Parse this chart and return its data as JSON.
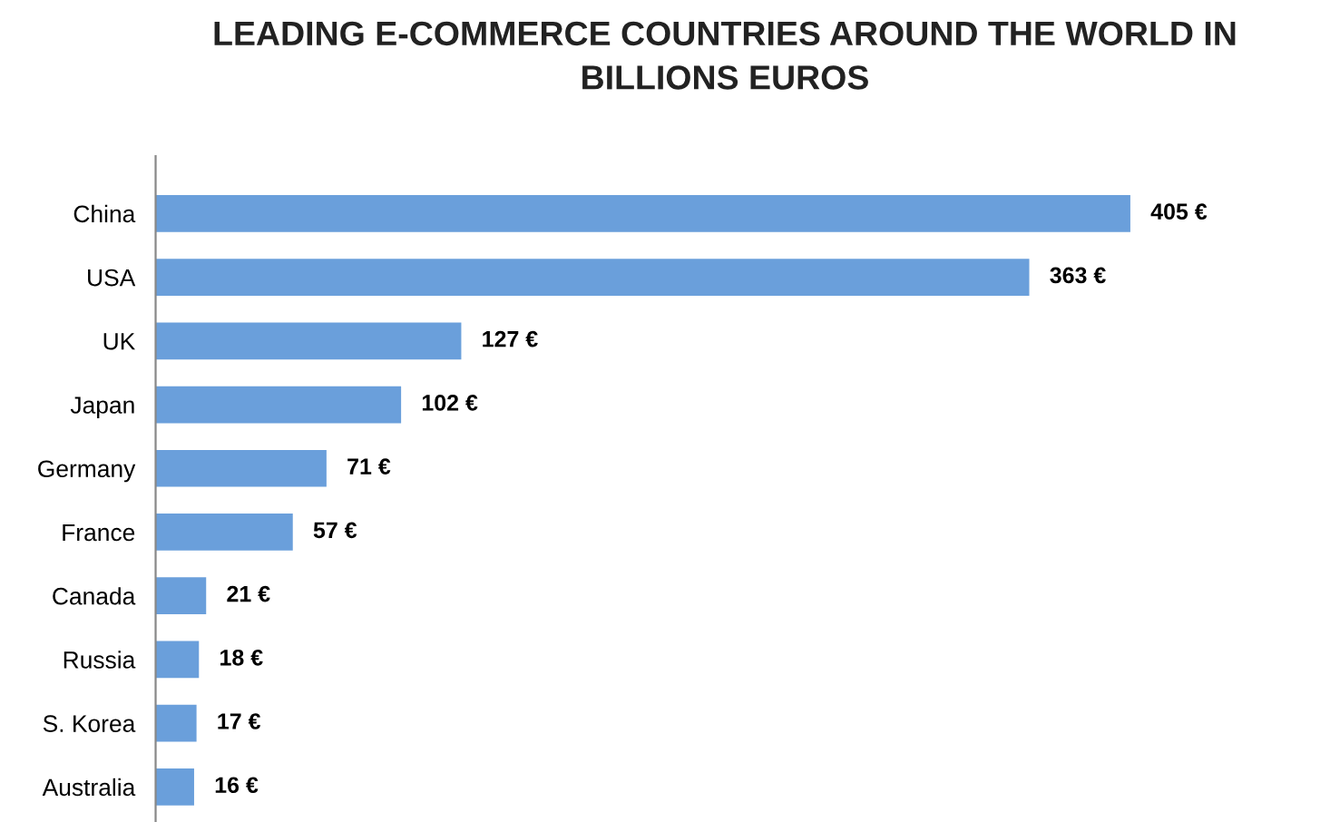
{
  "chart_data": {
    "type": "bar",
    "orientation": "horizontal",
    "title": "LEADING E-COMMERCE COUNTRIES AROUND THE WORLD IN\nBILLIONS EUROS",
    "categories": [
      "China",
      "USA",
      "UK",
      "Japan",
      "Germany",
      "France",
      "Canada",
      "Russia",
      "S. Korea",
      "Australia"
    ],
    "series": [
      {
        "color": "#6a9fdb",
        "values": [
          405,
          363,
          127,
          102,
          71,
          57,
          21,
          18,
          17,
          16
        ],
        "value_labels": [
          "405 €",
          "363 €",
          "127 €",
          "102 €",
          "71 €",
          "57 €",
          "21 €",
          "18 €",
          "17 €",
          "16 €"
        ]
      }
    ],
    "grid": false,
    "legend": false
  }
}
